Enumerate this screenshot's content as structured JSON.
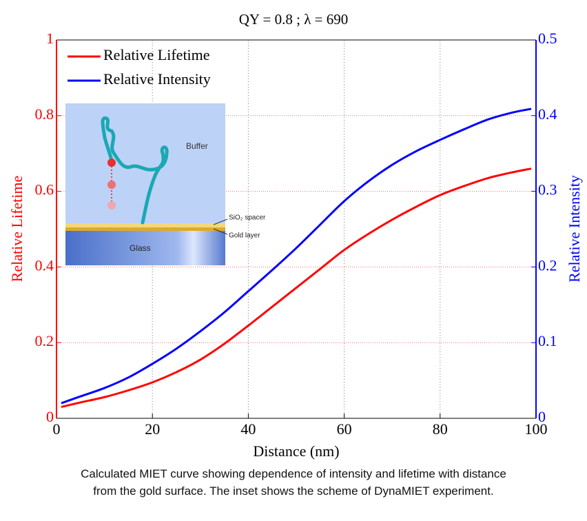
{
  "chart_data": {
    "type": "line",
    "title": "QY = 0.8 ; λ = 690",
    "xlabel": "Distance (nm)",
    "ylabel": "Relative Lifetime",
    "y2label": "Relative Intensity",
    "x": [
      1,
      5,
      10,
      15,
      20,
      25,
      30,
      35,
      40,
      45,
      50,
      55,
      60,
      65,
      70,
      75,
      80,
      85,
      90,
      95,
      99
    ],
    "series": [
      {
        "name": "Relative Lifetime",
        "color": "#ff0000",
        "axis": "y",
        "values": [
          0.03,
          0.042,
          0.056,
          0.074,
          0.095,
          0.122,
          0.155,
          0.197,
          0.245,
          0.295,
          0.345,
          0.395,
          0.445,
          0.487,
          0.525,
          0.559,
          0.59,
          0.614,
          0.635,
          0.65,
          0.66
        ]
      },
      {
        "name": "Relative Intensity",
        "color": "#0000ff",
        "axis": "y2",
        "values": [
          0.02,
          0.029,
          0.04,
          0.054,
          0.072,
          0.092,
          0.115,
          0.14,
          0.168,
          0.196,
          0.225,
          0.256,
          0.287,
          0.313,
          0.335,
          0.353,
          0.368,
          0.382,
          0.395,
          0.404,
          0.409
        ]
      }
    ],
    "xlim": [
      0,
      100
    ],
    "xticks": [
      0,
      20,
      40,
      60,
      80,
      100
    ],
    "ylim": [
      0,
      1
    ],
    "yticks": [
      0,
      0.2,
      0.4,
      0.6,
      0.8,
      1
    ],
    "y2lim": [
      0,
      0.5
    ],
    "y2ticks": [
      0,
      0.1,
      0.2,
      0.3,
      0.4,
      0.5
    ],
    "grid": true,
    "legend": "upper-left",
    "inset_labels": [
      "Buffer",
      "SiO₂ spacer",
      "Gold layer",
      "Glass"
    ]
  },
  "caption": "Calculated MIET curve showing dependence of intensity and lifetime with distance from the gold surface. The inset shows the scheme of DynaMIET experiment."
}
